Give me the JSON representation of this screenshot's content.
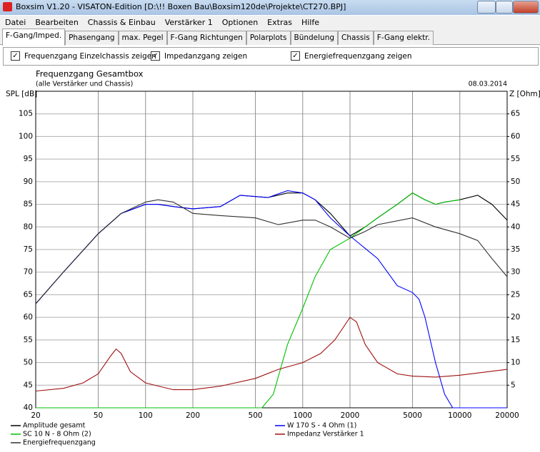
{
  "window": {
    "title": "Boxsim V1.20 - VISATON-Edition [D:\\!!   Boxen Bau\\Boxsim120de\\Projekte\\CT270.BPJ]",
    "menu": [
      "Datei",
      "Bearbeiten",
      "Chassis & Einbau",
      "Verstärker 1",
      "Optionen",
      "Extras",
      "Hilfe"
    ],
    "tabs": [
      "F-Gang/Imped.",
      "Phasengang",
      "max. Pegel",
      "F-Gang Richtungen",
      "Polarplots",
      "Bündelung",
      "Chassis",
      "F-Gang elektr."
    ],
    "active_tab": 0,
    "checkboxes": [
      {
        "label": "Frequenzgang Einzelchassis zeigen",
        "checked": true
      },
      {
        "label": "Impedanzgang zeigen",
        "checked": true
      },
      {
        "label": "Energiefrequenzgang zeigen",
        "checked": true
      }
    ]
  },
  "chart_data": {
    "type": "line",
    "title": "Frequenzgang Gesamtbox",
    "subtitle": "(alle Verstärker und Chassis)",
    "date": "08.03.2014",
    "ylabel": "SPL [dB]",
    "y2label": "Z [Ohm]",
    "xscale": "log",
    "xlim": [
      20,
      20000
    ],
    "xticks": [
      20,
      50,
      100,
      200,
      500,
      1000,
      2000,
      5000,
      10000,
      20000
    ],
    "ylim": [
      40,
      110
    ],
    "yticks": [
      40,
      45,
      50,
      55,
      60,
      65,
      70,
      75,
      80,
      85,
      90,
      95,
      100,
      105
    ],
    "y2lim": [
      0,
      70
    ],
    "y2ticks": [
      5,
      10,
      15,
      20,
      25,
      30,
      35,
      40,
      45,
      50,
      55,
      60,
      65
    ],
    "grid": true,
    "series": [
      {
        "name": "Amplitude gesamt",
        "color": "#000000",
        "x": [
          20,
          30,
          50,
          70,
          100,
          120,
          150,
          200,
          300,
          400,
          600,
          800,
          1000,
          1200,
          1500,
          2000,
          2500,
          3000,
          4000,
          5000,
          6000,
          7000,
          8000,
          10000,
          13000,
          16000,
          20000
        ],
        "values": [
          63,
          70,
          78.5,
          83,
          85,
          85,
          84.5,
          84,
          84.5,
          87,
          86.5,
          87.5,
          87.5,
          86,
          83,
          78,
          80,
          82,
          85,
          87.5,
          86,
          85,
          85.5,
          86,
          87,
          85,
          81.5
        ]
      },
      {
        "name": "W 170 S - 4 Ohm (1)",
        "color": "#0000ff",
        "x": [
          20,
          30,
          50,
          70,
          100,
          120,
          150,
          200,
          300,
          400,
          600,
          800,
          1000,
          1200,
          1500,
          2000,
          3000,
          4000,
          5000,
          5500,
          6000,
          7000,
          8000,
          9000,
          10000,
          20000
        ],
        "values": [
          63,
          70,
          78.5,
          83,
          85,
          85,
          84.5,
          84,
          84.5,
          87,
          86.5,
          88,
          87.5,
          86,
          82,
          78,
          73,
          67,
          65.5,
          64,
          60,
          50,
          43,
          40,
          40,
          40
        ]
      },
      {
        "name": "SC 10 N - 8 Ohm (2)",
        "color": "#00c000",
        "x": [
          20,
          100,
          300,
          550,
          650,
          800,
          1000,
          1200,
          1500,
          2000,
          2500,
          3000,
          4000,
          5000,
          6000,
          7000,
          8000,
          10000
        ],
        "values": [
          40,
          40,
          40,
          40,
          43,
          54,
          62,
          69,
          75,
          77.5,
          80,
          82,
          85,
          87.5,
          86,
          85,
          85.5,
          86
        ]
      },
      {
        "name": "Impedanz Verstärker 1",
        "color": "#a01010",
        "axis": "y2",
        "x": [
          20,
          30,
          40,
          50,
          60,
          65,
          70,
          80,
          100,
          150,
          200,
          300,
          500,
          700,
          1000,
          1300,
          1600,
          2000,
          2200,
          2500,
          3000,
          4000,
          5000,
          7000,
          10000,
          20000
        ],
        "values": [
          3.7,
          4.3,
          5.5,
          7.5,
          11.5,
          13,
          12,
          8,
          5.5,
          4,
          4,
          4.8,
          6.5,
          8.5,
          10,
          12,
          15,
          20,
          19,
          14,
          10,
          7.5,
          7,
          6.8,
          7.2,
          8.5
        ]
      },
      {
        "name": "Energiefrequenzgang",
        "color": "#303030",
        "x": [
          20,
          30,
          50,
          70,
          100,
          120,
          150,
          200,
          300,
          500,
          700,
          1000,
          1200,
          1500,
          2000,
          2500,
          3000,
          5000,
          7000,
          10000,
          13000,
          16000,
          20000
        ],
        "values": [
          63,
          70,
          78.5,
          83,
          85.5,
          86,
          85.5,
          83,
          82.5,
          82,
          80.5,
          81.5,
          81.5,
          80,
          77.5,
          79,
          80.5,
          82,
          80,
          78.5,
          77,
          73,
          69
        ]
      }
    ]
  }
}
